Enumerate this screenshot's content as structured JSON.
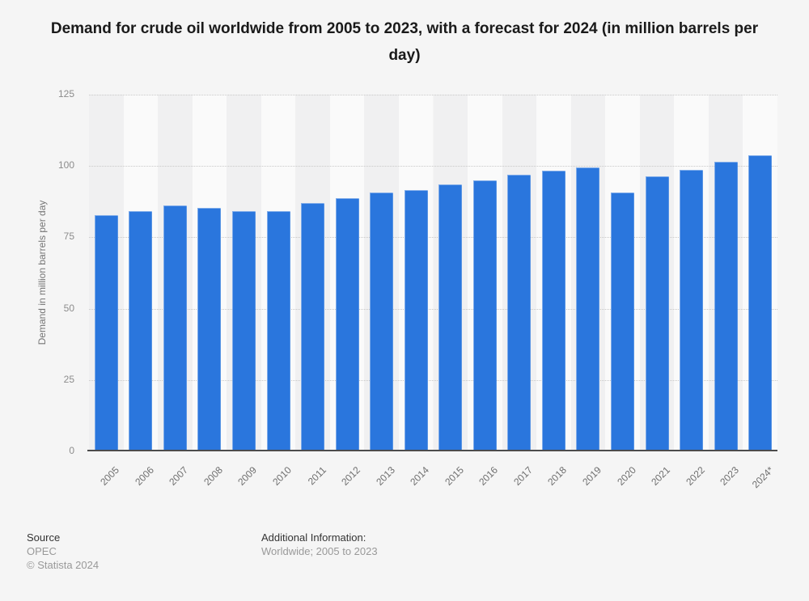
{
  "title": "Demand for crude oil worldwide from 2005 to 2023, with a forecast for 2024 (in million barrels per day)",
  "chart_data": {
    "type": "bar",
    "title": "Demand for crude oil worldwide from 2005 to 2023, with a forecast for 2024 (in million barrels per day)",
    "categories": [
      "2005",
      "2006",
      "2007",
      "2008",
      "2009",
      "2010",
      "2011",
      "2012",
      "2013",
      "2014",
      "2015",
      "2016",
      "2017",
      "2018",
      "2019",
      "2020",
      "2021",
      "2022",
      "2023",
      "2024*"
    ],
    "values": [
      82.9,
      84.2,
      86.3,
      85.3,
      84.1,
      84.1,
      87.0,
      88.8,
      90.7,
      91.5,
      93.5,
      95.1,
      96.9,
      98.4,
      99.5,
      90.6,
      96.5,
      98.7,
      101.4,
      103.7
    ],
    "xlabel": "",
    "ylabel": "Demand in million barrels per day",
    "ylim": [
      0,
      125
    ],
    "yticks": [
      0,
      25,
      50,
      75,
      100,
      125
    ],
    "grid": "horizontal-dotted",
    "legend": "none",
    "bar_color": "#2a76dd",
    "band_colors": [
      "#f0f0f1",
      "#fafafa"
    ],
    "gridline_color": "#c8c8c8",
    "axis_line_color": "#4c4c4c"
  },
  "footer": {
    "source_label": "Source",
    "source_value": "OPEC",
    "copyright": "© Statista 2024",
    "additional_label": "Additional Information:",
    "additional_value": "Worldwide; 2005 to 2023"
  }
}
